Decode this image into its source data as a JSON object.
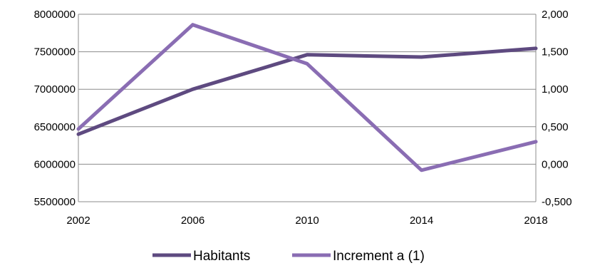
{
  "chart_data": {
    "type": "line",
    "x": [
      "2002",
      "2006",
      "2010",
      "2014",
      "2018"
    ],
    "y_left": {
      "min": 5500000,
      "max": 8000000,
      "ticks": [
        "8000000",
        "7500000",
        "7000000",
        "6500000",
        "6000000",
        "5500000"
      ],
      "tick_values": [
        8000000,
        7500000,
        7000000,
        6500000,
        6000000,
        5500000
      ]
    },
    "y_right": {
      "min": -0.5,
      "max": 2.0,
      "ticks": [
        "2,000",
        "1,500",
        "1,000",
        "0,500",
        "0,000",
        "-0,500"
      ],
      "tick_values": [
        2.0,
        1.5,
        1.0,
        0.5,
        0.0,
        -0.5
      ]
    },
    "grid": true,
    "legend_position": "bottom",
    "series": [
      {
        "name": "Habitants",
        "axis": "left",
        "color": "#5e4a80",
        "values": [
          6400000,
          7000000,
          7460000,
          7430000,
          7545000
        ]
      },
      {
        "name": "Increment a (1)",
        "axis": "right",
        "color": "#8a6db3",
        "values": [
          0.47,
          1.86,
          1.34,
          -0.08,
          0.3
        ]
      }
    ]
  }
}
